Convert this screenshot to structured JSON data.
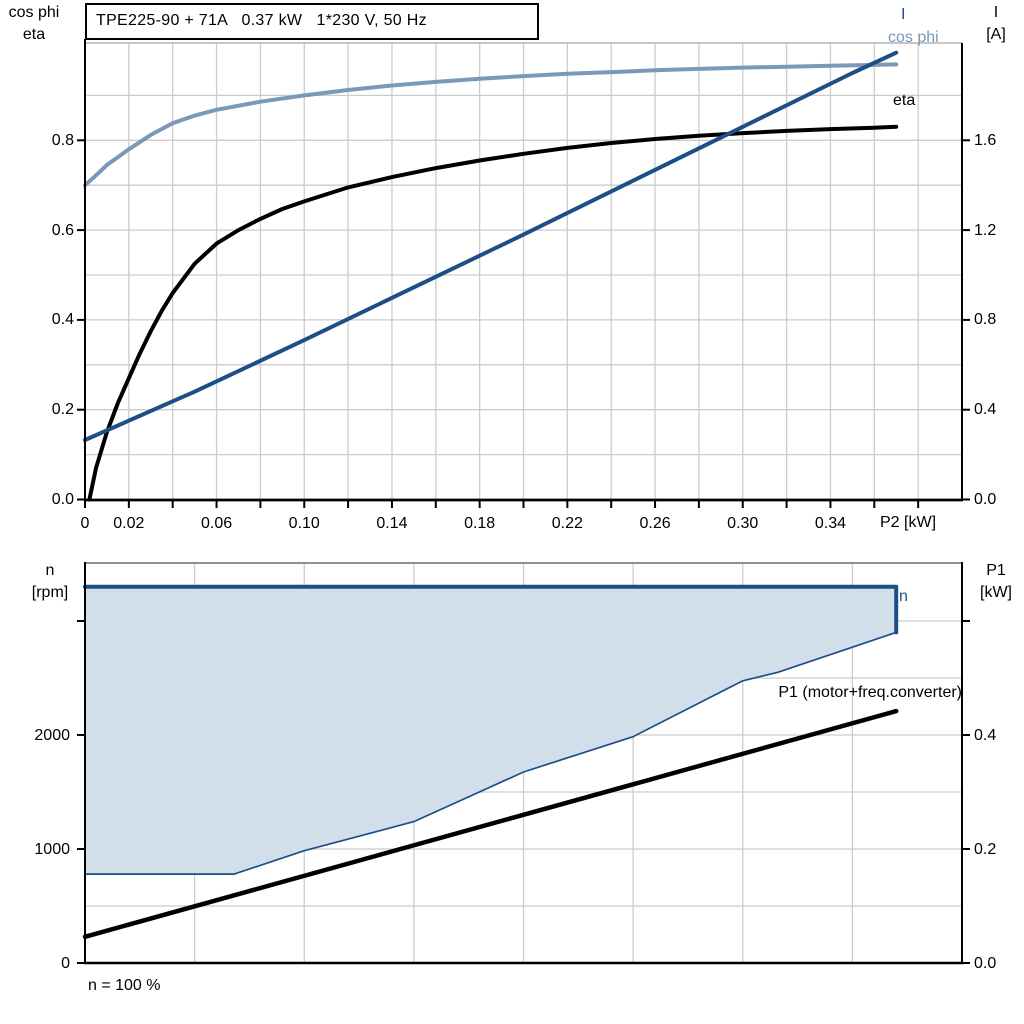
{
  "colors": {
    "cos_phi_curve": "#7a99b8",
    "eta_curve": "#000000",
    "current_curve": "#1d4f87",
    "region_fill": "#d3deeb",
    "region_border": "#1d4f87",
    "p1_curve": "#000000",
    "grid": "#cccccc",
    "chart_top_border_1": "#b3b3b3",
    "chart_top_border_2": "#808080",
    "axis": "#000000"
  },
  "chart_data": [
    {
      "type": "line",
      "title": "TPE225-90 + 71A   0.37 kW   1*230 V, 50 Hz",
      "axis_title_left_1": "cos phi",
      "axis_title_left_2": "eta",
      "axis_title_right_1": "I",
      "axis_title_right_2": "[A]",
      "xlabel": "P2 [kW]",
      "xlim": [
        0,
        0.4
      ],
      "ylim_left": [
        0,
        1.02
      ],
      "ylim_right": [
        0,
        2.04
      ],
      "grid_step_x": 0.02,
      "grid_step_y_left": 0.1,
      "xticks": [
        {
          "v": 0.0,
          "label": "0"
        },
        {
          "v": 0.02,
          "label": "0.02"
        },
        {
          "v": 0.06,
          "label": "0.06"
        },
        {
          "v": 0.1,
          "label": "0.10"
        },
        {
          "v": 0.14,
          "label": "0.14"
        },
        {
          "v": 0.18,
          "label": "0.18"
        },
        {
          "v": 0.22,
          "label": "0.22"
        },
        {
          "v": 0.26,
          "label": "0.26"
        },
        {
          "v": 0.3,
          "label": "0.30"
        },
        {
          "v": 0.34,
          "label": "0.34"
        }
      ],
      "yticks_left": [
        {
          "v": 0.0,
          "label": "0.0"
        },
        {
          "v": 0.2,
          "label": "0.2"
        },
        {
          "v": 0.4,
          "label": "0.4"
        },
        {
          "v": 0.6,
          "label": "0.6"
        },
        {
          "v": 0.8,
          "label": "0.8"
        }
      ],
      "yticks_right": [
        {
          "v": 0.0,
          "label": "0.0"
        },
        {
          "v": 0.4,
          "label": "0.4"
        },
        {
          "v": 0.8,
          "label": "0.8"
        },
        {
          "v": 1.2,
          "label": "1.2"
        },
        {
          "v": 1.6,
          "label": "1.6"
        }
      ],
      "series": [
        {
          "name": "cos phi",
          "axis": "left",
          "color": "#7a99b8",
          "width": 4,
          "points": [
            [
              0,
              0.7
            ],
            [
              0.005,
              0.722
            ],
            [
              0.01,
              0.745
            ],
            [
              0.02,
              0.78
            ],
            [
              0.03,
              0.812
            ],
            [
              0.04,
              0.838
            ],
            [
              0.05,
              0.855
            ],
            [
              0.06,
              0.868
            ],
            [
              0.08,
              0.886
            ],
            [
              0.1,
              0.9
            ],
            [
              0.12,
              0.912
            ],
            [
              0.14,
              0.922
            ],
            [
              0.16,
              0.93
            ],
            [
              0.18,
              0.937
            ],
            [
              0.2,
              0.943
            ],
            [
              0.22,
              0.948
            ],
            [
              0.24,
              0.952
            ],
            [
              0.26,
              0.956
            ],
            [
              0.28,
              0.959
            ],
            [
              0.3,
              0.962
            ],
            [
              0.32,
              0.964
            ],
            [
              0.34,
              0.966
            ],
            [
              0.36,
              0.968
            ],
            [
              0.37,
              0.969
            ]
          ]
        },
        {
          "name": "eta",
          "axis": "left",
          "color": "#000000",
          "width": 4,
          "points": [
            [
              0.002,
              0.0
            ],
            [
              0.005,
              0.07
            ],
            [
              0.01,
              0.15
            ],
            [
              0.015,
              0.215
            ],
            [
              0.02,
              0.27
            ],
            [
              0.025,
              0.325
            ],
            [
              0.03,
              0.375
            ],
            [
              0.035,
              0.42
            ],
            [
              0.04,
              0.46
            ],
            [
              0.05,
              0.525
            ],
            [
              0.06,
              0.57
            ],
            [
              0.07,
              0.6
            ],
            [
              0.08,
              0.625
            ],
            [
              0.09,
              0.647
            ],
            [
              0.1,
              0.664
            ],
            [
              0.12,
              0.695
            ],
            [
              0.14,
              0.718
            ],
            [
              0.16,
              0.738
            ],
            [
              0.18,
              0.755
            ],
            [
              0.2,
              0.77
            ],
            [
              0.22,
              0.783
            ],
            [
              0.24,
              0.794
            ],
            [
              0.26,
              0.803
            ],
            [
              0.28,
              0.81
            ],
            [
              0.3,
              0.816
            ],
            [
              0.32,
              0.821
            ],
            [
              0.34,
              0.825
            ],
            [
              0.36,
              0.828
            ],
            [
              0.37,
              0.83
            ]
          ]
        },
        {
          "name": "I",
          "axis": "right",
          "color": "#1d4f87",
          "width": 4,
          "points": [
            [
              0,
              0.265
            ],
            [
              0.05,
              0.48
            ],
            [
              0.1,
              0.71
            ],
            [
              0.15,
              0.945
            ],
            [
              0.2,
              1.18
            ],
            [
              0.25,
              1.42
            ],
            [
              0.3,
              1.66
            ],
            [
              0.35,
              1.9
            ],
            [
              0.37,
              1.99
            ]
          ]
        }
      ]
    },
    {
      "type": "area+line",
      "axis_title_left_1": "n",
      "axis_title_left_2": "[rpm]",
      "axis_title_right_1": "P1",
      "axis_title_right_2": "[kW]",
      "footnote": "n = 100 %",
      "xlim": [
        0,
        0.4
      ],
      "ylim_left_rpm": [
        0,
        3500
      ],
      "ylim_right_kw": [
        0,
        0.7
      ],
      "grid_step_x": 0.05,
      "grid_step_rpm": 500,
      "yticks_left": [
        {
          "v": 0,
          "label": "0"
        },
        {
          "v": 1000,
          "label": "1000"
        },
        {
          "v": 2000,
          "label": "2000"
        },
        {
          "v": 3000,
          "label": ""
        }
      ],
      "yticks_right": [
        {
          "v": 0.0,
          "label": "0.0"
        },
        {
          "v": 0.2,
          "label": "0.2"
        },
        {
          "v": 0.4,
          "label": "0.4"
        },
        {
          "v": 0.6,
          "label": ""
        }
      ],
      "region": {
        "name": "n",
        "fill": "#d3deeb",
        "border": "#1d4f87",
        "n_max": 3300,
        "n_min": 780,
        "x_end": 0.37,
        "lower_boundary": [
          [
            0,
            780
          ],
          [
            0.068,
            780
          ],
          [
            0.1,
            985
          ],
          [
            0.15,
            1240
          ],
          [
            0.2,
            1675
          ],
          [
            0.25,
            1985
          ],
          [
            0.3,
            2475
          ],
          [
            0.316,
            2550
          ],
          [
            0.35,
            2770
          ],
          [
            0.37,
            2900
          ]
        ]
      },
      "series": [
        {
          "name": "P1 (motor+freq.converter)",
          "axis": "right",
          "color": "#000000",
          "width": 4.5,
          "points": [
            [
              0,
              0.046
            ],
            [
              0.37,
              0.442
            ]
          ]
        }
      ]
    }
  ]
}
